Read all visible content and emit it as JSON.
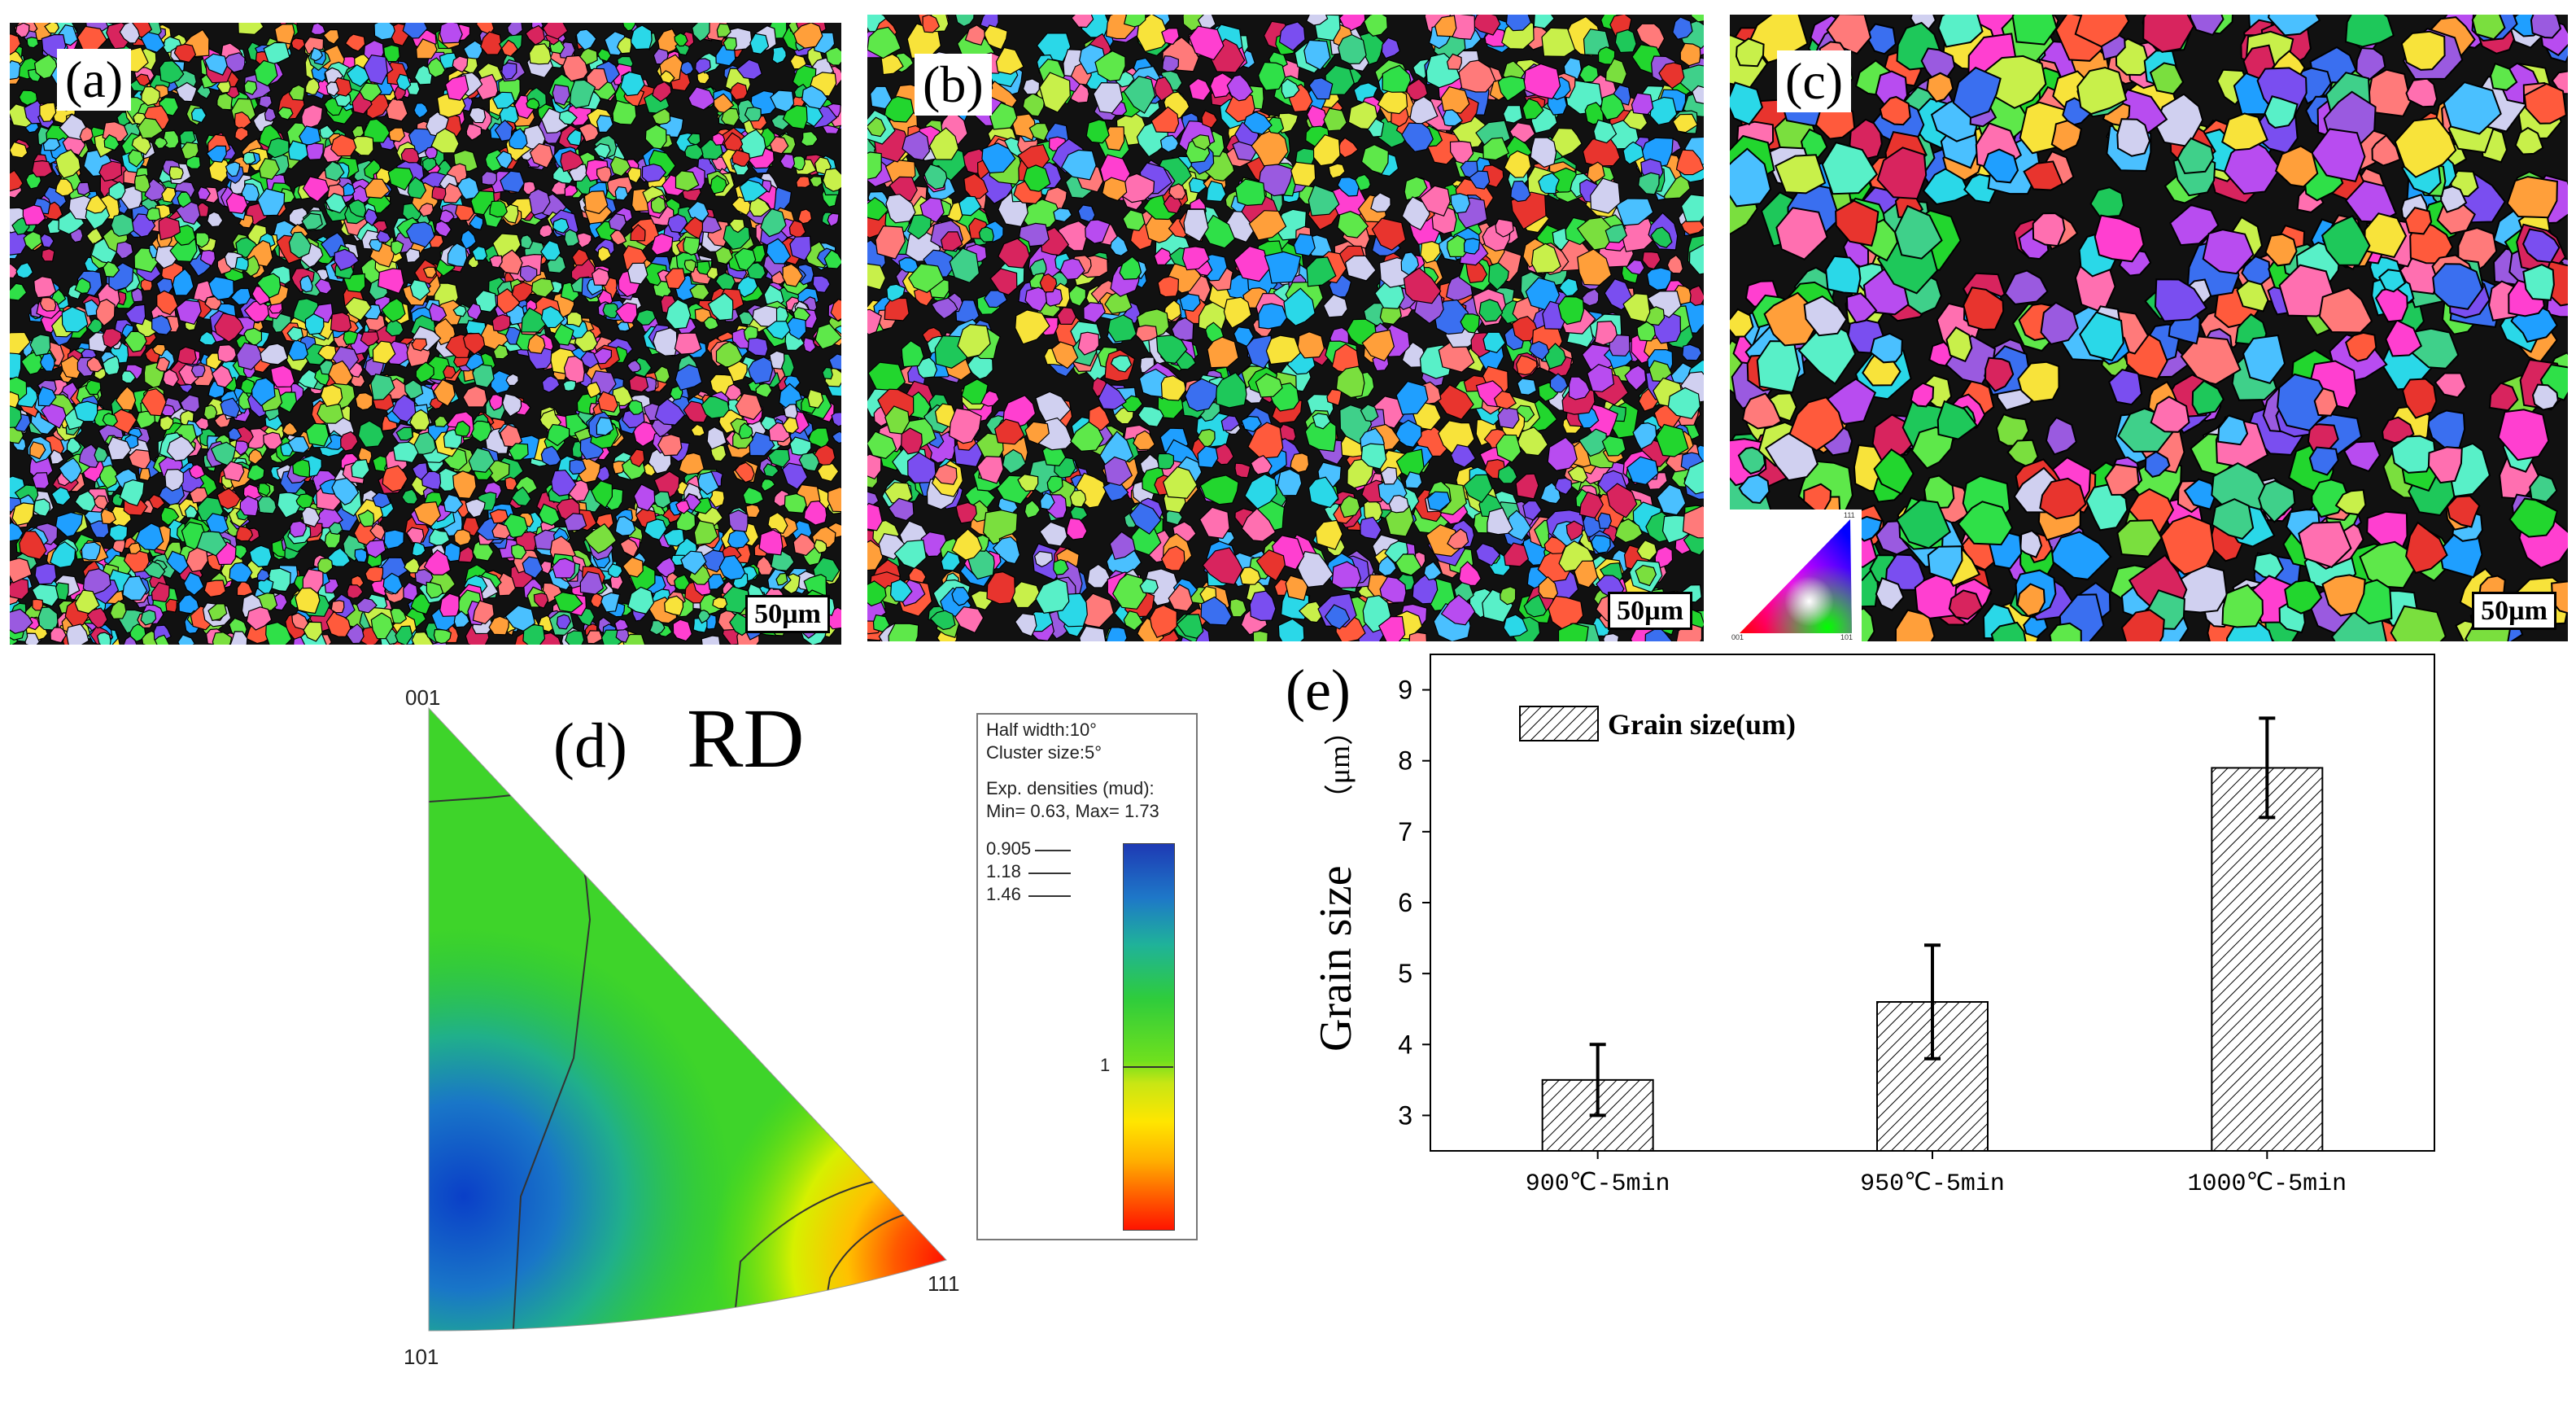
{
  "maps": [
    {
      "label": "(a)",
      "scale": "50µm",
      "seed": 11,
      "grains": 2600
    },
    {
      "label": "(b)",
      "scale": "50µm",
      "seed": 29,
      "grains": 1500
    },
    {
      "label": "(c)",
      "scale": "50µm",
      "seed": 47,
      "grains": 620
    }
  ],
  "ipf_key": {
    "corners": [
      "001",
      "101",
      "111"
    ]
  },
  "ipf_d": {
    "label": "(d)",
    "direction": "RD",
    "corners": {
      "top": "001",
      "bottom": "101",
      "right": "111"
    },
    "legend": {
      "half_width": "Half width:10°",
      "cluster_size": "Cluster size:5°",
      "exp_densities": "Exp. densities (mud):",
      "min_max": "Min= 0.63, Max= 1.73",
      "contours": [
        "0.905",
        "1.18",
        "1.46"
      ],
      "mid_tick": "1"
    }
  },
  "chart_data": {
    "type": "bar",
    "panel_label": "(e)",
    "categories": [
      "900℃-5min",
      "950℃-5min",
      "1000℃-5min"
    ],
    "series": [
      {
        "name": "Grain size(um)",
        "values": [
          3.5,
          4.6,
          7.9
        ],
        "errors": [
          0.5,
          0.8,
          0.7
        ]
      }
    ],
    "ylabel": "Grain size",
    "ylabel_unit": "（μm）",
    "ylim": [
      2.5,
      9.5
    ],
    "yticks": [
      3,
      4,
      5,
      6,
      7,
      8,
      9
    ],
    "legend_position": "top-left",
    "bar_fill": "hatched"
  },
  "colors": {
    "bar_hatch": "#000000",
    "scale_top": "#0000ff",
    "scale_bottom": "#ff0000"
  }
}
